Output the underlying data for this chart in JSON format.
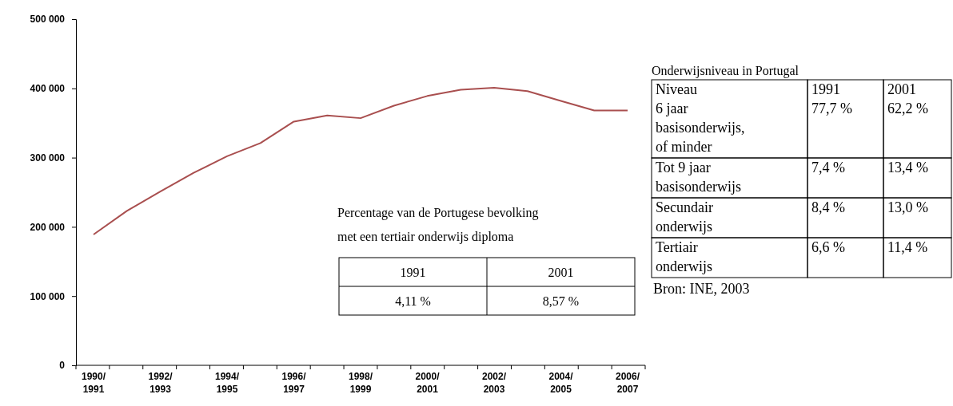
{
  "chart_data": [
    {
      "type": "line",
      "categories": [
        "1990/1991",
        null,
        "1992/1993",
        null,
        "1994/1995",
        null,
        "1996/1997",
        null,
        "1998/1999",
        null,
        "2000/2001",
        null,
        "2002/2003",
        null,
        "2004/2005",
        null,
        "2006/2007"
      ],
      "series": [
        {
          "color": "#a94f4f",
          "values": [
            189000,
            223000,
            251000,
            278000,
            302000,
            321000,
            352000,
            361000,
            357000,
            375000,
            389000,
            398000,
            401000,
            396000,
            382000,
            368000,
            368000
          ]
        }
      ],
      "ylim": [
        0,
        500000
      ],
      "yticks": [
        {
          "value": 0,
          "label": "0"
        },
        {
          "value": 100000,
          "label": "100 000"
        },
        {
          "value": 200000,
          "label": "200 000"
        },
        {
          "value": 300000,
          "label": "300 000"
        },
        {
          "value": 400000,
          "label": "400 000"
        },
        {
          "value": 500000,
          "label": "500 000"
        }
      ],
      "grid": false,
      "marker": "none",
      "line_style": "solid",
      "annotations": [
        "Percentage van de Portugese bevolking\nmet een tertiair onderwijs diploma",
        "1991",
        "2001",
        "4,11 %",
        "8,57 %"
      ]
    },
    {
      "type": "other",
      "title": "Onderwijsniveau in Portugal",
      "annotations": [
        "Niveau\n6 jaar\nbasisonderwijs,\nof minder",
        "1991\n77,7 %",
        "2001\n62,2 %",
        "Tot 9 jaar\nbasisonderwijs",
        "7,4 %",
        "13,4 %",
        "Secundair\nonderwijs",
        "8,4 %",
        "13,0 %",
        "Tertiair\nonderwijs",
        "6,6 %",
        "11,4 %",
        "Bron: INE, 2003"
      ]
    }
  ]
}
